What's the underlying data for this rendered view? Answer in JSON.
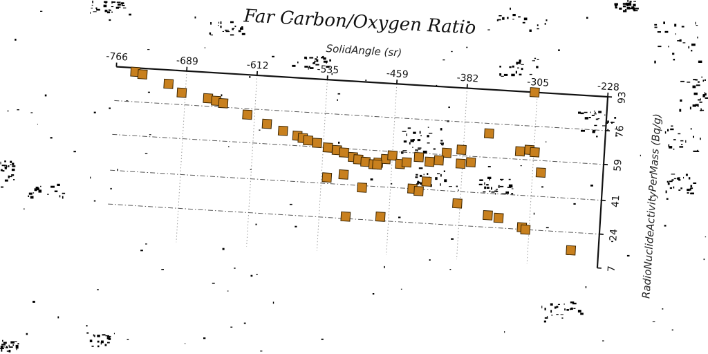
{
  "chart_data": {
    "type": "scatter",
    "title": "Far Carbon/Oxygen Ratio",
    "xlabel": "SolidAngle (sr)",
    "ylabel": "RadioNuclideActivityPerMass (Bq/g)",
    "xlim": [
      -766,
      -228
    ],
    "ylim": [
      7,
      93
    ],
    "x_ticks": [
      "-766",
      "-689",
      "-612",
      "-535",
      "-459",
      "-382",
      "-305",
      "-228"
    ],
    "y_ticks": [
      "7",
      "24",
      "41",
      "59",
      "76",
      "93"
    ],
    "x_axis_position": "top",
    "y_axis_position": "right",
    "grid": true,
    "marker_shape": "square",
    "marker_color": "#c8801e",
    "points": [
      {
        "x": -745,
        "y": 91
      },
      {
        "x": -737,
        "y": 90
      },
      {
        "x": -708,
        "y": 86
      },
      {
        "x": -693,
        "y": 82
      },
      {
        "x": -664,
        "y": 80
      },
      {
        "x": -655,
        "y": 79
      },
      {
        "x": -647,
        "y": 78
      },
      {
        "x": -620,
        "y": 73
      },
      {
        "x": -598,
        "y": 69
      },
      {
        "x": -580,
        "y": 66
      },
      {
        "x": -564,
        "y": 64
      },
      {
        "x": -558,
        "y": 63
      },
      {
        "x": -552,
        "y": 62
      },
      {
        "x": -542,
        "y": 61
      },
      {
        "x": -530,
        "y": 59
      },
      {
        "x": -520,
        "y": 58
      },
      {
        "x": -512,
        "y": 57
      },
      {
        "x": -502,
        "y": 55
      },
      {
        "x": -496,
        "y": 54
      },
      {
        "x": -488,
        "y": 53
      },
      {
        "x": -479,
        "y": 52
      },
      {
        "x": -474,
        "y": 53
      },
      {
        "x": -466,
        "y": 55
      },
      {
        "x": -459,
        "y": 57
      },
      {
        "x": -450,
        "y": 53
      },
      {
        "x": -443,
        "y": 54
      },
      {
        "x": -430,
        "y": 57
      },
      {
        "x": -418,
        "y": 55
      },
      {
        "x": -400,
        "y": 60
      },
      {
        "x": -384,
        "y": 62
      },
      {
        "x": -373,
        "y": 56
      },
      {
        "x": -355,
        "y": 71
      },
      {
        "x": -320,
        "y": 63
      },
      {
        "x": -310,
        "y": 64
      },
      {
        "x": -304,
        "y": 63
      },
      {
        "x": -296,
        "y": 53
      },
      {
        "x": -308,
        "y": 93
      },
      {
        "x": -511,
        "y": 46
      },
      {
        "x": -529,
        "y": 44
      },
      {
        "x": -490,
        "y": 40
      },
      {
        "x": -435,
        "y": 41
      },
      {
        "x": -428,
        "y": 40
      },
      {
        "x": -420,
        "y": 45
      },
      {
        "x": -385,
        "y": 35
      },
      {
        "x": -351,
        "y": 30
      },
      {
        "x": -339,
        "y": 29
      },
      {
        "x": -313,
        "y": 25
      },
      {
        "x": -309,
        "y": 24
      },
      {
        "x": -258,
        "y": 15
      },
      {
        "x": -468,
        "y": 26
      },
      {
        "x": -506,
        "y": 25
      },
      {
        "x": -475,
        "y": 52
      },
      {
        "x": -384,
        "y": 55
      },
      {
        "x": -408,
        "y": 56
      }
    ]
  }
}
